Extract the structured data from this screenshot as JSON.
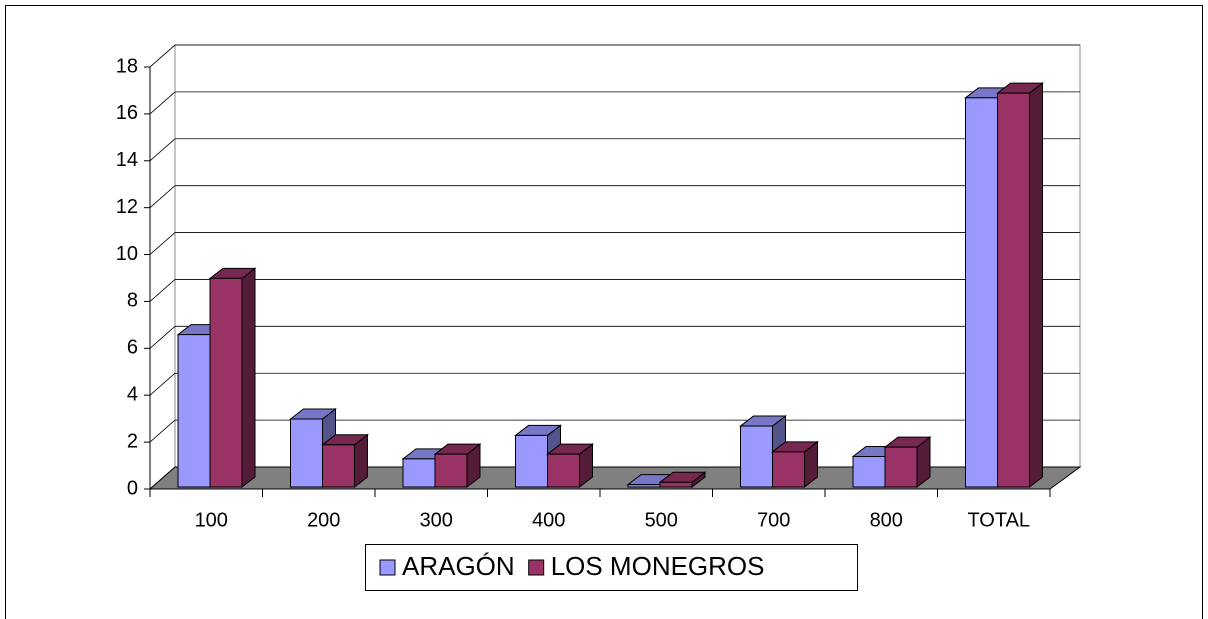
{
  "chart_data": {
    "type": "bar3d",
    "categories": [
      "100",
      "200",
      "300",
      "400",
      "500",
      "700",
      "800",
      "TOTAL"
    ],
    "series": [
      {
        "name": "ARAGÓN",
        "color": "#9999ff",
        "values": [
          6.5,
          2.9,
          1.2,
          2.2,
          0.1,
          2.6,
          1.3,
          16.6
        ]
      },
      {
        "name": "LOS MONEGROS",
        "color": "#993366",
        "values": [
          8.9,
          1.8,
          1.4,
          1.4,
          0.2,
          1.5,
          1.7,
          16.8
        ]
      }
    ],
    "ylim": [
      0,
      18
    ],
    "yticks": [
      0,
      2,
      4,
      6,
      8,
      10,
      12,
      14,
      16,
      18
    ],
    "grid": true,
    "legend": "bottom"
  }
}
